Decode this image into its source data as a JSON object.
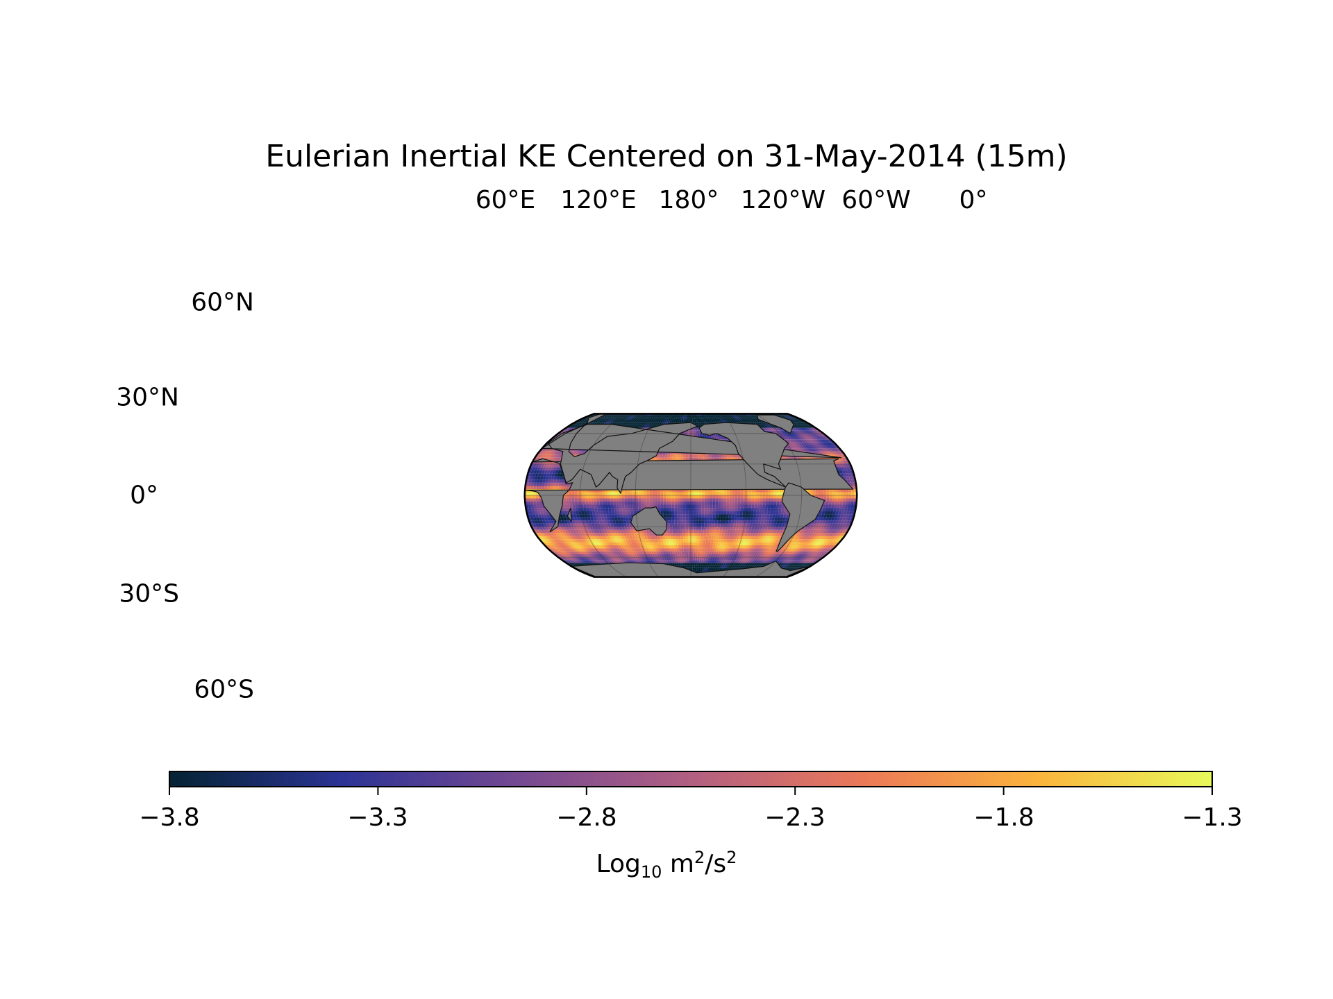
{
  "title": "Eulerian Inertial KE Centered on 31-May-2014 (15m)",
  "map": {
    "projection": "Robinson",
    "central_longitude": 180,
    "ocean_colormap": "thermal",
    "land_color": "#808080",
    "top_longitude_labels": [
      "60°E",
      "120°E",
      "180°",
      "120°W",
      "60°W",
      "0°"
    ],
    "latitude_labels": [
      "60°N",
      "30°N",
      "0°",
      "30°S",
      "60°S"
    ],
    "gridlines": true
  },
  "colorbar": {
    "min": -3.8,
    "max": -1.3,
    "ticks": [
      "−3.8",
      "−3.3",
      "−2.8",
      "−2.3",
      "−1.8",
      "−1.3"
    ],
    "label_main": "Log",
    "label_sub": "10",
    "label_unit": " m",
    "label_sup1": "2",
    "label_mid": "/s",
    "label_sup2": "2",
    "colors": [
      "#042333",
      "#2c3395",
      "#744992",
      "#b15f82",
      "#eb7958",
      "#fbb43d",
      "#e8fa5b"
    ]
  }
}
